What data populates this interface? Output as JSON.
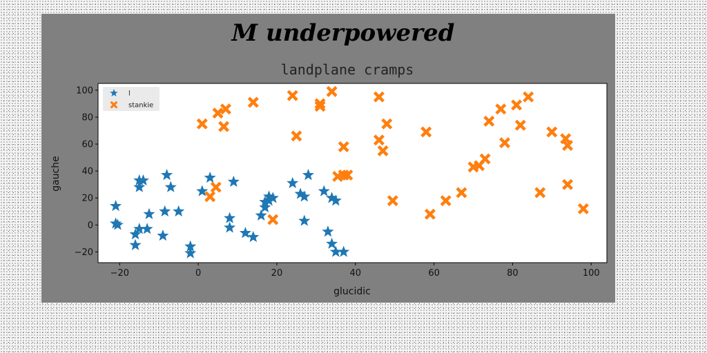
{
  "chart_data": {
    "type": "scatter",
    "title": "M underpowered",
    "subtitle": "landplane cramps",
    "xlabel": "glucidic",
    "ylabel": "gauche",
    "xlim": [
      -25.5,
      104
    ],
    "ylim": [
      -28,
      105
    ],
    "xticks": [
      -20,
      0,
      20,
      40,
      60,
      80,
      100
    ],
    "yticks": [
      -20,
      0,
      20,
      40,
      60,
      80,
      100
    ],
    "grid": false,
    "legend_position": "top-left",
    "series": [
      {
        "name": "l",
        "marker": "star",
        "color": "#1f77b4",
        "x": [
          -21,
          -21,
          -20.5,
          -16,
          -16,
          -15,
          -15,
          -15,
          -14,
          -13,
          -12.5,
          -9,
          -8.5,
          -8,
          -7,
          -5,
          -2,
          -2,
          1,
          3,
          8,
          8,
          9,
          12,
          14,
          16,
          17,
          17,
          18,
          18,
          19,
          24,
          26,
          27,
          27,
          28,
          32,
          33,
          34,
          34,
          35,
          35,
          37
        ],
        "y": [
          14,
          1,
          0,
          -15,
          -7,
          -3,
          28,
          33,
          33,
          -3,
          8,
          -8,
          10,
          37,
          28,
          10,
          -16,
          -21,
          25,
          35,
          5,
          -2,
          32,
          -6,
          -9,
          7,
          13,
          17,
          21,
          18,
          20,
          31,
          23,
          21,
          3,
          37,
          25,
          -5,
          -14,
          20,
          -20,
          18,
          -20
        ]
      },
      {
        "name": "stankie",
        "marker": "x",
        "color": "#ff7f0e",
        "x": [
          1,
          3,
          4.5,
          5,
          6.5,
          7,
          14,
          19,
          24,
          25,
          31,
          31,
          34,
          35.5,
          37,
          37,
          38,
          46,
          46,
          47,
          48,
          49.5,
          58,
          59,
          63,
          67,
          70,
          71.5,
          73,
          74,
          77,
          78,
          81,
          82,
          84,
          87,
          90,
          93.5,
          94,
          94,
          98
        ],
        "y": [
          75,
          21,
          28,
          83,
          73,
          86,
          91,
          4,
          96,
          66,
          88,
          90,
          99,
          36,
          58,
          37,
          37,
          63,
          95,
          55,
          75,
          18,
          69,
          8,
          18,
          24,
          43,
          44,
          49,
          77,
          86,
          61,
          89,
          74,
          95,
          24,
          69,
          64,
          59,
          30,
          12
        ]
      }
    ]
  }
}
